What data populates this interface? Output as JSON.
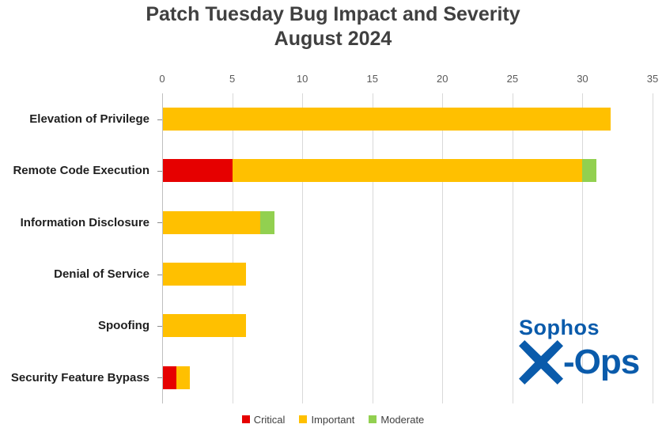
{
  "title": {
    "line1": "Patch Tuesday Bug Impact and Severity",
    "line2": "August 2024"
  },
  "chart_data": {
    "type": "bar",
    "orientation": "horizontal",
    "stacked": true,
    "title": "Patch Tuesday Bug Impact and Severity August 2024",
    "categories": [
      "Elevation of Privilege",
      "Remote Code Execution",
      "Information Disclosure",
      "Denial of Service",
      "Spoofing",
      "Security Feature Bypass"
    ],
    "series": [
      {
        "name": "Critical",
        "color": "#e60000",
        "values": [
          0,
          5,
          0,
          0,
          0,
          1
        ]
      },
      {
        "name": "Important",
        "color": "#ffc000",
        "values": [
          32,
          25,
          7,
          6,
          6,
          1
        ]
      },
      {
        "name": "Moderate",
        "color": "#92d050",
        "values": [
          0,
          1,
          1,
          0,
          0,
          0
        ]
      }
    ],
    "totals": [
      32,
      31,
      8,
      6,
      6,
      2
    ],
    "xlim": [
      0,
      35
    ],
    "xticks": [
      0,
      5,
      10,
      15,
      20,
      25,
      30,
      35
    ],
    "grid": "vertical",
    "legend_position": "bottom",
    "xlabel": "",
    "ylabel": ""
  },
  "legend": {
    "items": [
      {
        "label": "Critical",
        "color": "#e60000"
      },
      {
        "label": "Important",
        "color": "#ffc000"
      },
      {
        "label": "Moderate",
        "color": "#92d050"
      }
    ]
  },
  "logo": {
    "brand": "Sophos",
    "x_letter": "X",
    "suffix": "-Ops",
    "color": "#0a5bab"
  },
  "colors": {
    "title_text": "#404040",
    "axis_text": "#595959",
    "category_text": "#1f1f1f",
    "gridline": "#d9d9d9",
    "axis_line": "#bfbfbf",
    "background": "#ffffff"
  }
}
